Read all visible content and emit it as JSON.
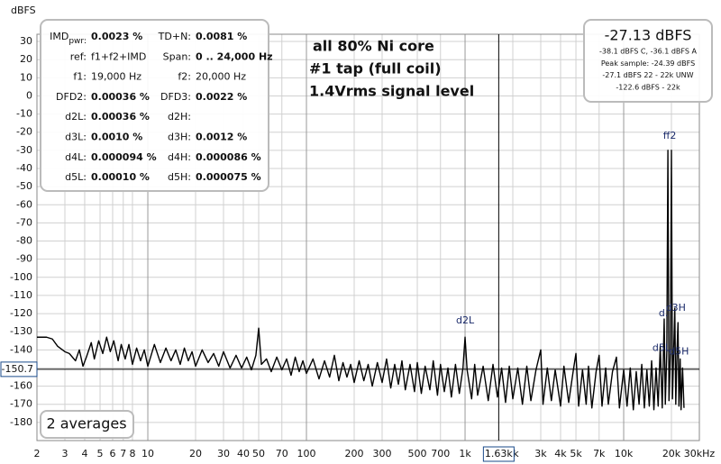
{
  "chart_data": {
    "type": "line",
    "y_axis_label": "dBFS",
    "color": "#000000",
    "xscale": "log",
    "grid": true,
    "xlim": [
      2,
      30000
    ],
    "ylim": [
      -190,
      34
    ],
    "xticks": [
      2,
      3,
      4,
      5,
      6,
      7,
      8,
      10,
      20,
      30,
      40,
      50,
      70,
      100,
      200,
      300,
      500,
      700,
      {
        "value": 1000,
        "label": "1k"
      },
      {
        "value": 2000,
        "label": "2k"
      },
      {
        "value": 3000,
        "label": "3k"
      },
      {
        "value": 4000,
        "label": "4k"
      },
      {
        "value": 5000,
        "label": "5k"
      },
      {
        "value": 7000,
        "label": "7k"
      },
      {
        "value": 10000,
        "label": "10k"
      },
      {
        "value": 20000,
        "label": "20k"
      },
      {
        "value": 30000,
        "label": "30kHz"
      }
    ],
    "yticks": [
      30,
      20,
      10,
      0,
      -10,
      -20,
      -30,
      -40,
      -50,
      -60,
      -70,
      -80,
      -90,
      -100,
      -110,
      -120,
      -130,
      -140,
      -150,
      -160,
      -170,
      -180
    ],
    "cursor": {
      "x": {
        "value": 1630,
        "label": "1.63k"
      },
      "y": -150.7
    },
    "x": [
      2,
      2.3,
      2.5,
      2.7,
      3,
      3.2,
      3.5,
      3.7,
      3.9,
      4.1,
      4.4,
      4.6,
      4.9,
      5.2,
      5.5,
      5.8,
      6.1,
      6.5,
      6.8,
      7.2,
      7.6,
      8,
      8.5,
      9,
      9.5,
      10,
      11,
      12,
      13,
      14,
      15,
      16,
      17,
      18,
      19,
      20,
      22,
      24,
      26,
      28,
      30,
      33,
      36,
      39,
      42,
      45,
      48,
      50,
      52,
      56,
      60,
      65,
      70,
      75,
      80,
      85,
      90,
      95,
      100,
      110,
      120,
      130,
      140,
      150,
      160,
      170,
      180,
      190,
      200,
      215,
      230,
      245,
      260,
      280,
      300,
      320,
      340,
      360,
      380,
      400,
      420,
      450,
      480,
      500,
      530,
      560,
      600,
      630,
      670,
      700,
      740,
      780,
      820,
      870,
      920,
      970,
      1000,
      1030,
      1100,
      1150,
      1200,
      1300,
      1400,
      1500,
      1600,
      1700,
      1800,
      1900,
      2000,
      2150,
      2300,
      2450,
      2600,
      2800,
      3000,
      3100,
      3300,
      3500,
      3700,
      4000,
      4200,
      4500,
      4800,
      5000,
      5200,
      5500,
      5800,
      6000,
      6300,
      6700,
      7000,
      7300,
      7700,
      8000,
      8500,
      9000,
      9400,
      10000,
      10500,
      11000,
      11500,
      12000,
      12500,
      13000,
      13500,
      14000,
      14500,
      15000,
      15500,
      16000,
      16500,
      17000,
      17500,
      18000,
      18300,
      18700,
      19000,
      19300,
      19700,
      20000,
      20300,
      20700,
      21000,
      21300,
      21700,
      22000,
      22300,
      22700,
      23000,
      23500,
      24000
    ],
    "values": [
      -133,
      -133,
      -134,
      -138,
      -141,
      -142,
      -146,
      -140,
      -149,
      -144,
      -136,
      -145,
      -135,
      -142,
      -133,
      -141,
      -135,
      -146,
      -137,
      -145,
      -137,
      -148,
      -139,
      -146,
      -140,
      -149,
      -137,
      -147,
      -139,
      -146,
      -140,
      -148,
      -139,
      -146,
      -141,
      -149,
      -140,
      -147,
      -142,
      -149,
      -141,
      -150,
      -143,
      -150,
      -144,
      -151,
      -143,
      -128,
      -148,
      -145,
      -152,
      -144,
      -151,
      -145,
      -154,
      -144,
      -152,
      -146,
      -153,
      -145,
      -156,
      -146,
      -155,
      -143,
      -157,
      -147,
      -155,
      -148,
      -158,
      -146,
      -157,
      -148,
      -160,
      -147,
      -158,
      -145,
      -161,
      -148,
      -159,
      -146,
      -162,
      -148,
      -163,
      -147,
      -164,
      -149,
      -162,
      -146,
      -165,
      -148,
      -163,
      -150,
      -166,
      -148,
      -164,
      -150,
      -133,
      -151,
      -167,
      -148,
      -165,
      -149,
      -168,
      -148,
      -166,
      -150,
      -169,
      -149,
      -167,
      -150,
      -170,
      -149,
      -168,
      -151,
      -140,
      -170,
      -150,
      -168,
      -151,
      -171,
      -149,
      -169,
      -152,
      -142,
      -171,
      -151,
      -170,
      -149,
      -172,
      -152,
      -143,
      -171,
      -150,
      -170,
      -152,
      -144,
      -172,
      -151,
      -171,
      -150,
      -173,
      -152,
      -170,
      -148,
      -172,
      -151,
      -171,
      -146,
      -173,
      -150,
      -171,
      -138,
      -172,
      -123,
      -170,
      -141,
      -30,
      -168,
      -142,
      -30,
      -167,
      -138,
      -117,
      -170,
      -140,
      -125,
      -171,
      -145,
      -173,
      -150,
      -172
    ],
    "peak_labels": [
      {
        "label": "d2L",
        "x": 1000,
        "y": -124
      },
      {
        "label": "ff2",
        "x": 19500,
        "y": -22
      },
      {
        "label": "d.",
        "x": 17800,
        "y": -120
      },
      {
        "label": "d3H",
        "x": 21300,
        "y": -117
      },
      {
        "label": "d5L",
        "x": 17300,
        "y": -139
      },
      {
        "label": "d5H",
        "x": 22300,
        "y": -141
      }
    ],
    "annotations": [
      "all 80% Ni core",
      "#1 tap (full coil)",
      "1.4Vrms signal level"
    ],
    "stats_sub": "pwr:",
    "stats": [
      [
        "IMD",
        "0.0023 %",
        "TD+N:",
        "0.0081 %"
      ],
      [
        "ref:",
        "f1+f2+IMD",
        "Span:",
        "0 .. 24,000 Hz"
      ],
      [
        "f1:",
        "19,000 Hz",
        "f2:",
        "20,000 Hz"
      ],
      [
        "DFD2:",
        "0.00036 %",
        "DFD3:",
        "0.0022 %"
      ],
      [
        "d2L:",
        "0.00036 %",
        "d2H:"
      ],
      [
        "d3L:",
        "0.0010 %",
        "d3H:",
        "0.0012 %"
      ],
      [
        "d4L:",
        "0.000094 %",
        "d4H:",
        "0.000086 %"
      ],
      [
        "d5L:",
        "0.00010 %",
        "d5H:",
        "0.000075 %"
      ]
    ],
    "level": {
      "main": "-27.13 dBFS",
      "lines": [
        "-38.1 dBFS C, -36.1 dBFS A",
        "Peak sample: -24.39 dBFS",
        "-27.1 dBFS 22 - 22k UNW",
        "-122.6 dBFS - 22k"
      ]
    },
    "averages": "2 averages"
  }
}
